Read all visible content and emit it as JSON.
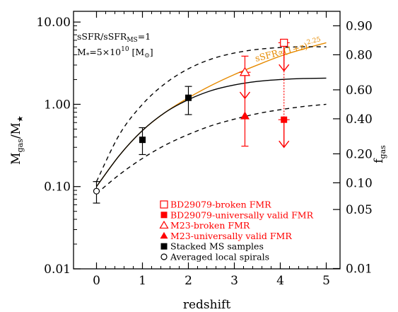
{
  "chart_data": {
    "type": "scatter",
    "xlabel": "redshift",
    "ylabel_left": {
      "main": "M",
      "sub1": "gas",
      "mid": "/M",
      "sub2": "★"
    },
    "ylabel_right": {
      "main": "f",
      "sub": "gas"
    },
    "xlim": [
      -0.5,
      5.3
    ],
    "ylim_left": [
      0.01,
      13.5
    ],
    "yscale_left": "log",
    "x_ticks": [
      "0",
      "1",
      "2",
      "3",
      "4",
      "5"
    ],
    "y_ticks_left": [
      "0.01",
      "0.10",
      "1.00",
      "10.00"
    ],
    "y_ticks_right": [
      "0.01",
      "0.05",
      "0.10",
      "0.20",
      "0.40",
      "0.60",
      "0.80",
      "0.90"
    ],
    "y_ticks_right_values": [
      0.01,
      0.05,
      0.1,
      0.2,
      0.4,
      0.6,
      0.8,
      0.9
    ],
    "annotation": {
      "line1": {
        "a": "sSFR/sSFR",
        "sub": "MS",
        "b": "=1"
      },
      "line2": {
        "a": "M",
        "sub": "*",
        "b": "=5×10",
        "sup": "10",
        "c": " [M",
        "sub2": "⊙",
        "d": "]"
      }
    },
    "curve_label": {
      "text": "sSFR∝(1+z)",
      "sup": "2.25",
      "color": "#e68a00"
    },
    "colors": {
      "orange": "#e68a00",
      "red": "#ff0000",
      "black": "#000000"
    },
    "series": [
      {
        "name": "Averaged local spirals",
        "marker": "open-circle",
        "color": "#000000",
        "points": [
          {
            "x": 0.0,
            "y": 0.088,
            "yerr_low": 0.063,
            "yerr_high": 0.115
          }
        ]
      },
      {
        "name": "Stacked MS samples",
        "marker": "filled-square",
        "color": "#000000",
        "points": [
          {
            "x": 1.0,
            "y": 0.37,
            "yerr_low": 0.245,
            "yerr_high": 0.52
          },
          {
            "x": 2.0,
            "y": 1.2,
            "yerr_low": 0.75,
            "yerr_high": 1.65
          }
        ]
      },
      {
        "name": "M23-universally valid FMR",
        "marker": "filled-triangle",
        "color": "#ff0000",
        "points": [
          {
            "x": 3.23,
            "y": 0.72,
            "yerr_low": 0.31,
            "yerr_high": 3.85
          }
        ]
      },
      {
        "name": "M23-broken FMR",
        "marker": "open-triangle",
        "color": "#ff0000",
        "points": [
          {
            "x": 3.23,
            "y": 2.45,
            "upper_limit": true,
            "arrow_to": 1.18
          }
        ]
      },
      {
        "name": "BD29079-universally valid FMR",
        "marker": "filled-square",
        "color": "#ff0000",
        "points": [
          {
            "x": 4.08,
            "y": 0.65,
            "upper_limit": true,
            "arrow_to": 0.3
          }
        ]
      },
      {
        "name": "BD29079-broken FMR",
        "marker": "open-square",
        "color": "#ff0000",
        "points": [
          {
            "x": 4.08,
            "y": 5.6,
            "upper_limit": true,
            "arrow_to": 2.55,
            "dotted_to": 0.65
          }
        ]
      }
    ],
    "curves": [
      {
        "style": "solid",
        "color": "#e68a00",
        "x": [
          0,
          0.5,
          1,
          1.5,
          2,
          2.5,
          3,
          3.5,
          4,
          4.5,
          5
        ],
        "y": [
          0.1,
          0.24,
          0.48,
          0.8,
          1.2,
          1.7,
          2.3,
          3.0,
          3.85,
          4.7,
          5.6
        ]
      },
      {
        "style": "solid",
        "color": "#000000",
        "x": [
          0,
          0.5,
          1,
          1.5,
          2,
          2.5,
          3,
          3.5,
          4,
          4.5,
          5
        ],
        "y": [
          0.1,
          0.24,
          0.48,
          0.8,
          1.14,
          1.47,
          1.72,
          1.9,
          2.0,
          2.06,
          2.08
        ]
      },
      {
        "style": "dashed",
        "color": "#000000",
        "x": [
          0,
          0.5,
          1,
          1.5,
          2,
          2.5,
          3,
          3.5,
          4,
          4.5,
          5
        ],
        "y": [
          0.115,
          0.43,
          1.0,
          1.8,
          2.7,
          3.55,
          4.2,
          4.65,
          4.9,
          5.0,
          5.0
        ]
      },
      {
        "style": "dashed",
        "color": "#000000",
        "x": [
          0,
          0.5,
          1,
          1.5,
          2,
          2.5,
          3,
          3.5,
          4,
          4.5,
          5
        ],
        "y": [
          0.082,
          0.14,
          0.22,
          0.32,
          0.43,
          0.55,
          0.66,
          0.77,
          0.86,
          0.94,
          1.0
        ]
      }
    ],
    "legend_placement": "bottom-right inside plot"
  }
}
